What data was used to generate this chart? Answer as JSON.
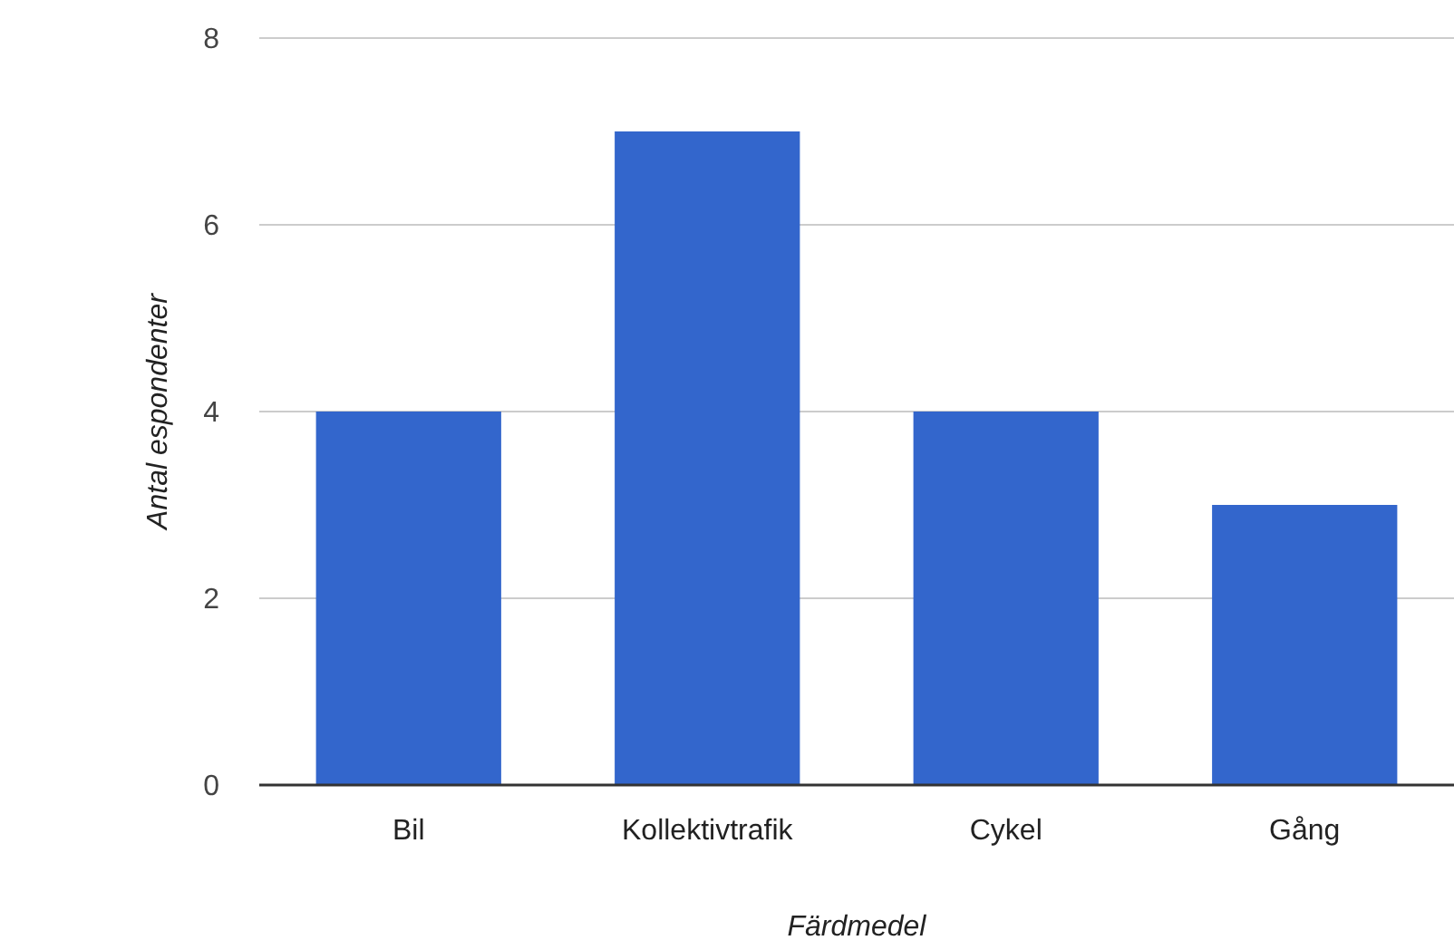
{
  "chart_data": {
    "type": "bar",
    "xlabel": "Färdmedel",
    "ylabel": "Antal espondenter",
    "categories": [
      "Bil",
      "Kollektivtrafik",
      "Cykel",
      "Gång"
    ],
    "values": [
      4,
      7,
      4,
      3
    ],
    "color": "#3366cc",
    "ylim": [
      0,
      8
    ],
    "yticks": [
      0,
      2,
      4,
      6,
      8
    ],
    "grid": "y"
  }
}
